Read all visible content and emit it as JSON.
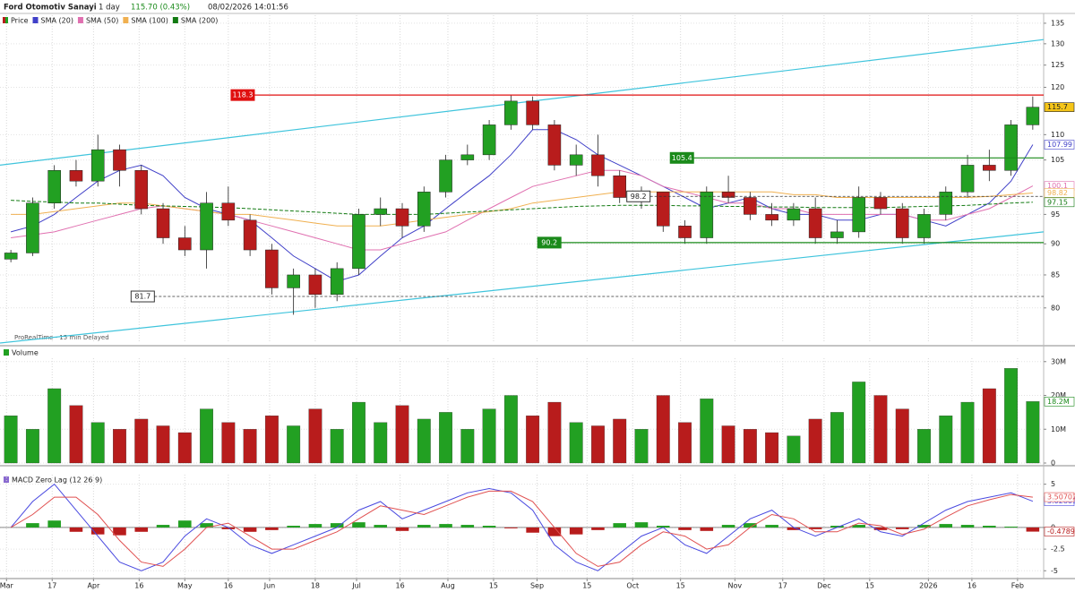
{
  "header": {
    "title": "Ford Otomotiv Sanayi",
    "interval": "1 day",
    "quote": "115.70 (0.43%)",
    "datetime": "08/02/2026 14:01:56"
  },
  "chart_data": [
    {
      "type": "candlestick",
      "name": "Price",
      "log": true,
      "up_color": "#22a022",
      "down_color": "#b81c1c",
      "open": [
        87.5,
        88.5,
        97,
        103,
        101,
        107,
        103,
        96,
        91,
        89,
        97,
        94,
        89,
        83,
        85,
        82,
        86,
        95,
        96,
        93,
        99,
        105,
        106,
        112,
        117,
        112,
        104,
        106,
        102,
        98,
        99,
        93,
        91,
        99,
        98,
        95,
        94,
        96,
        91,
        92,
        98,
        96,
        91,
        95,
        99,
        104,
        103,
        112
      ],
      "high": [
        89,
        98,
        104,
        105,
        110,
        108,
        104,
        97,
        93,
        99,
        100,
        95,
        90,
        86,
        86,
        87,
        96,
        98,
        97,
        100,
        106,
        108,
        113,
        118.3,
        118,
        113,
        108,
        110,
        103,
        100,
        99,
        94,
        100,
        102,
        99,
        97,
        97,
        98,
        94,
        100,
        99,
        97,
        96,
        100,
        106,
        107,
        113,
        118
      ],
      "low": [
        87,
        88,
        96,
        100,
        100,
        100,
        95,
        90,
        88,
        86,
        93,
        88,
        82,
        79,
        80,
        81,
        85,
        93,
        91,
        92,
        98,
        104,
        105,
        111,
        111,
        103,
        102,
        100,
        97,
        96,
        92,
        90,
        90,
        97,
        94,
        93,
        93,
        90,
        90,
        91,
        95,
        90,
        90,
        94,
        98,
        101,
        102,
        111
      ],
      "close": [
        88.5,
        97,
        103,
        101,
        107,
        103,
        96,
        91,
        89,
        97,
        94,
        89,
        83,
        85,
        82,
        86,
        95,
        96,
        93,
        99,
        105,
        106,
        112,
        117,
        112,
        104,
        106,
        102,
        98,
        99,
        93,
        91,
        99,
        98,
        95,
        94,
        96,
        91,
        92,
        98,
        96,
        91,
        95,
        99,
        104,
        103,
        112,
        115.7
      ],
      "xlim": [
        -0.5,
        47.5
      ],
      "ylim": [
        75,
        137
      ],
      "yticks": [
        80,
        85,
        90,
        95,
        105,
        110,
        120,
        125,
        130,
        135
      ],
      "grid": true,
      "series": [
        {
          "name": "SMA (20)",
          "color": "#4040c8",
          "values": [
            92,
            93,
            95,
            98,
            101,
            103,
            104,
            102,
            98,
            96,
            95,
            94,
            91,
            88,
            86,
            84,
            85,
            88,
            91,
            93,
            96,
            99,
            102,
            106,
            111,
            111,
            109,
            106,
            104,
            102,
            100,
            98,
            96,
            97,
            98,
            96,
            95,
            95,
            94,
            94,
            95,
            95,
            94,
            93,
            95,
            97,
            101,
            107.99
          ]
        },
        {
          "name": "SMA (50)",
          "color": "#e070b0",
          "values": [
            91,
            91.5,
            92,
            93,
            94,
            95,
            96,
            96.5,
            96,
            95.5,
            95,
            94,
            93,
            92,
            91,
            90,
            89,
            89,
            90,
            91,
            92,
            94,
            96,
            98,
            100,
            101,
            102,
            103,
            103,
            102,
            100,
            99,
            98,
            97,
            97,
            96,
            96,
            95,
            95,
            95,
            95,
            95,
            94,
            94,
            95,
            96,
            98,
            100.1
          ]
        },
        {
          "name": "SMA (100)",
          "color": "#f0b050",
          "values": [
            95,
            95,
            95.5,
            96,
            96.5,
            97,
            97,
            96.5,
            96,
            95.5,
            95,
            95,
            94.5,
            94,
            93.5,
            93,
            93,
            93,
            93.5,
            94,
            94.5,
            95,
            95.5,
            96,
            97,
            97.5,
            98,
            98.5,
            99,
            99,
            99,
            99,
            99,
            99,
            99,
            99,
            98.5,
            98.5,
            98,
            98,
            98,
            98,
            98,
            98,
            98,
            98.2,
            98.5,
            98.82
          ]
        },
        {
          "name": "SMA (200)",
          "color": "#127a12",
          "dash": true,
          "values": [
            97.5,
            97.3,
            97.2,
            97,
            97,
            96.8,
            96.6,
            96.5,
            96.4,
            96.3,
            96.2,
            96,
            95.8,
            95.6,
            95.4,
            95.2,
            95,
            95,
            95,
            95,
            95.2,
            95.4,
            95.6,
            95.8,
            96,
            96.2,
            96.4,
            96.5,
            96.6,
            96.6,
            96.6,
            96.5,
            96.5,
            96.4,
            96.4,
            96.3,
            96.3,
            96.2,
            96.2,
            96.2,
            96.2,
            96.3,
            96.4,
            96.5,
            96.6,
            96.8,
            97,
            97.15
          ]
        }
      ],
      "levels": [
        {
          "value": 118.3,
          "start": 11.2,
          "color": "#e01010",
          "dash": false
        },
        {
          "value": 105.4,
          "start": 31.4,
          "color": "#1a8a1a",
          "dash": false
        },
        {
          "value": 90.2,
          "start": 25.3,
          "color": "#1a8a1a",
          "dash": false
        },
        {
          "value": 98.2,
          "start": 29.4,
          "color": "#333333",
          "dash": true
        },
        {
          "value": 81.7,
          "start": 6.6,
          "color": "#333333",
          "dash": true
        }
      ],
      "trendlines": [
        {
          "x": [
            -0.5,
            47.5
          ],
          "values": [
            104,
            131
          ],
          "color": "#3fc4dc"
        },
        {
          "x": [
            -0.5,
            47.5
          ],
          "values": [
            75,
            92
          ],
          "color": "#3fc4dc"
        }
      ],
      "source": "ProRealTime - 15 min Delayed"
    },
    {
      "type": "bar",
      "title": "Volume",
      "values": [
        14000000,
        10000000,
        22000000,
        17000000,
        12000000,
        10000000,
        13000000,
        11000000,
        9000000,
        16000000,
        12000000,
        10000000,
        14000000,
        11000000,
        16000000,
        10000000,
        18000000,
        12000000,
        17000000,
        13000000,
        15000000,
        10000000,
        16000000,
        20000000,
        14000000,
        18000000,
        12000000,
        11000000,
        13000000,
        10000000,
        20000000,
        12000000,
        19000000,
        11000000,
        10000000,
        9000000,
        8000000,
        13000000,
        15000000,
        24000000,
        20000000,
        16000000,
        10000000,
        14000000,
        18000000,
        22000000,
        28000000,
        18200000
      ],
      "value_labels": [
        null,
        null,
        null,
        null,
        null,
        null,
        null,
        null,
        null,
        null,
        null,
        null,
        null,
        null,
        null,
        null,
        null,
        null,
        null,
        null,
        null,
        null,
        null,
        null,
        null,
        null,
        null,
        null,
        null,
        null,
        null,
        null,
        null,
        null,
        null,
        null,
        null,
        null,
        null,
        null,
        null,
        null,
        null,
        null,
        null,
        null,
        null,
        "18.2M"
      ],
      "ylim": [
        0,
        31000000
      ],
      "yticks": [
        0,
        {
          "value": 10000000,
          "label": "10M"
        },
        {
          "value": 20000000,
          "label": "20M"
        },
        {
          "value": 30000000,
          "label": "30M"
        }
      ]
    },
    {
      "type": "macd",
      "title": "MACD Zero Lag (12 26 9)",
      "series": [
        {
          "color": "#4a4ae0",
          "values": [
            0,
            3,
            5,
            2,
            -1,
            -4,
            -5,
            -4,
            -1,
            1,
            0,
            -2,
            -3,
            -2,
            -1,
            0,
            2,
            3,
            1,
            2,
            3,
            4,
            4.5,
            4,
            2,
            -2,
            -4,
            -5,
            -3,
            -1,
            0,
            -2,
            -3,
            -1,
            1,
            2,
            0,
            -1,
            0,
            1,
            -0.5,
            -1,
            0.5,
            2,
            3,
            3.5,
            4,
            3.02809
          ]
        },
        {
          "color": "#e05050",
          "values": [
            0,
            1.5,
            3.5,
            3.5,
            1.5,
            -1.5,
            -4,
            -4.5,
            -2.5,
            0,
            0.5,
            -1,
            -2.5,
            -2.5,
            -1.5,
            -0.5,
            1,
            2.5,
            2,
            1.5,
            2.5,
            3.5,
            4.2,
            4.2,
            3,
            0,
            -3,
            -4.5,
            -4,
            -2,
            -0.5,
            -1,
            -2.5,
            -2,
            0,
            1.5,
            1,
            -0.5,
            -0.5,
            0.5,
            0.2,
            -0.8,
            -0.2,
            1.2,
            2.5,
            3.2,
            3.8,
            3.50702
          ]
        }
      ],
      "histogram": {
        "up_color": "#22a022",
        "down_color": "#b81c1c",
        "values": [
          0,
          0.5,
          0.8,
          -0.5,
          -0.8,
          -0.9,
          -0.5,
          0.3,
          0.8,
          0.5,
          -0.2,
          -0.5,
          -0.3,
          0.2,
          0.4,
          0.5,
          0.6,
          0.3,
          -0.4,
          0.3,
          0.4,
          0.3,
          0.2,
          -0.1,
          -0.6,
          -1,
          -0.8,
          -0.3,
          0.5,
          0.6,
          0.2,
          -0.3,
          -0.4,
          0.3,
          0.5,
          0.3,
          -0.3,
          -0.2,
          0.2,
          0.3,
          -0.3,
          -0.2,
          0.3,
          0.4,
          0.3,
          0.2,
          0.1,
          -0.47899
        ]
      },
      "ylim": [
        -5.8,
        6.1
      ],
      "yticks": [
        5,
        0,
        -2.5,
        -5
      ],
      "xlim": [
        -0.5,
        47.5
      ],
      "xticks": [
        {
          "value": -0.2,
          "label": "Mar"
        },
        {
          "value": 1.9,
          "label": "17"
        },
        {
          "value": 3.8,
          "label": "Apr"
        },
        {
          "value": 5.9,
          "label": "16"
        },
        {
          "value": 8.0,
          "label": "May"
        },
        {
          "value": 10.0,
          "label": "16"
        },
        {
          "value": 11.9,
          "label": "Jun"
        },
        {
          "value": 14.0,
          "label": "18"
        },
        {
          "value": 15.9,
          "label": "Jul"
        },
        {
          "value": 17.9,
          "label": "16"
        },
        {
          "value": 20.1,
          "label": "Aug"
        },
        {
          "value": 22.2,
          "label": "15"
        },
        {
          "value": 24.2,
          "label": "Sep"
        },
        {
          "value": 26.5,
          "label": "15"
        },
        {
          "value": 28.6,
          "label": "Oct"
        },
        {
          "value": 30.8,
          "label": "15"
        },
        {
          "value": 33.3,
          "label": "Nov"
        },
        {
          "value": 35.5,
          "label": "17"
        },
        {
          "value": 37.4,
          "label": "Dec"
        },
        {
          "value": 39.5,
          "label": "15"
        },
        {
          "value": 42.2,
          "label": "2026"
        },
        {
          "value": 44.2,
          "label": "16"
        },
        {
          "value": 46.3,
          "label": "Feb"
        }
      ]
    }
  ]
}
